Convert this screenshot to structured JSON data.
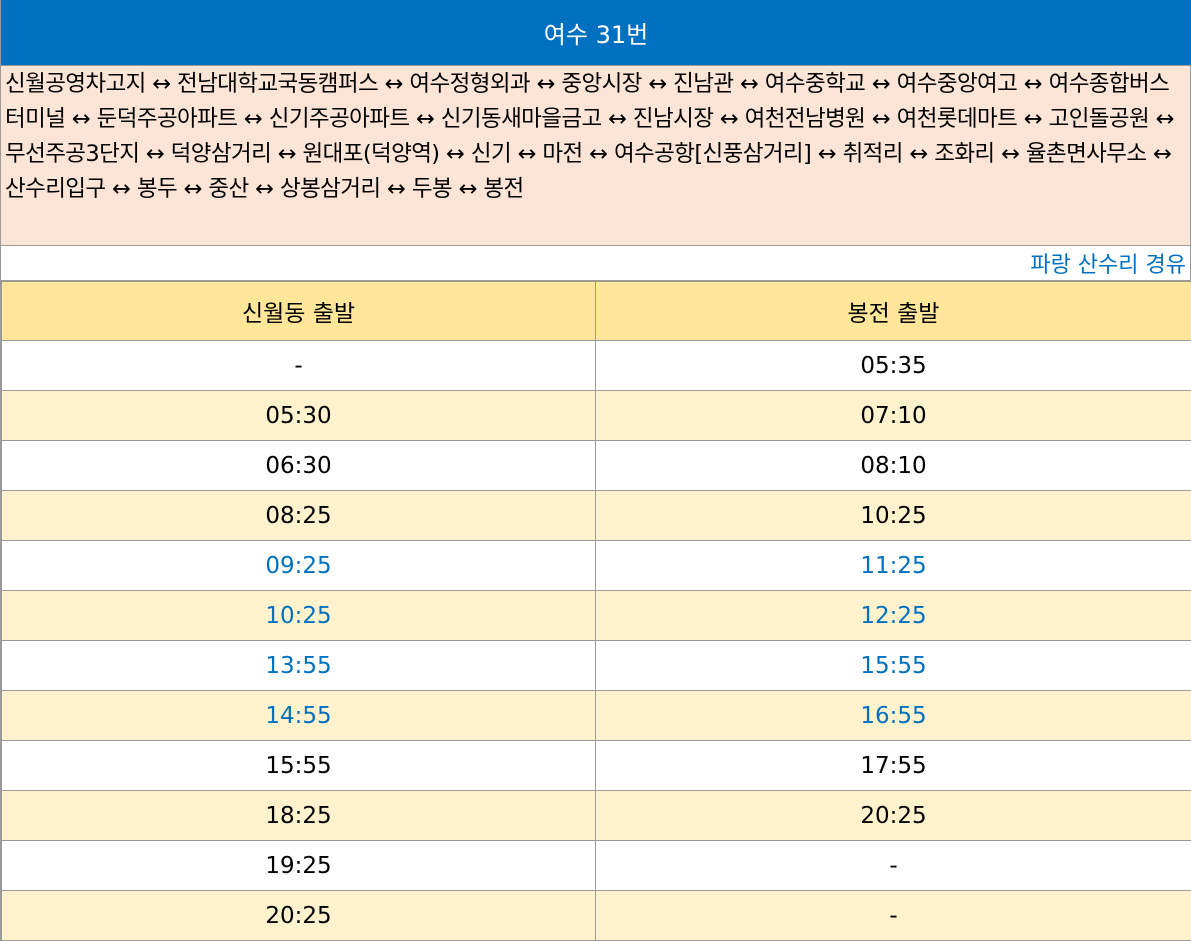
{
  "title": "여수 31번",
  "route_text": "신월공영차고지 ↔ 전남대학교국동캠퍼스 ↔ 여수정형외과 ↔ 중앙시장 ↔ 진남관 ↔ 여수중학교 ↔ 여수중앙여고 ↔ 여수종합버스터미널 ↔ 둔덕주공아파트 ↔ 신기주공아파트 ↔ 신기동새마을금고 ↔ 진남시장 ↔ 여천전남병원 ↔ 여천롯데마트 ↔ 고인돌공원 ↔ 무선주공3단지 ↔ 덕양삼거리 ↔ 원대포(덕양역) ↔ 신기 ↔ 마전 ↔ 여수공항[신풍삼거리] ↔ 취적리 ↔ 조화리 ↔ 율촌면사무소 ↔ 산수리입구 ↔ 봉두 ↔ 중산 ↔ 상봉삼거리 ↔ 두봉 ↔ 봉전",
  "note": "파랑 산수리 경유",
  "colors": {
    "title_bg": "#0070c0",
    "route_bg": "#fce4d6",
    "header_bg": "#ffe699",
    "row_alt_bg": "#fff2cc",
    "via_sansuri_text": "#0070c0"
  },
  "schedule": {
    "headers": [
      "신월동 출발",
      "봉전 출발"
    ],
    "rows": [
      {
        "c1": "-",
        "c2": "05:35",
        "color": "black"
      },
      {
        "c1": "05:30",
        "c2": "07:10",
        "color": "black"
      },
      {
        "c1": "06:30",
        "c2": "08:10",
        "color": "black"
      },
      {
        "c1": "08:25",
        "c2": "10:25",
        "color": "black"
      },
      {
        "c1": "09:25",
        "c2": "11:25",
        "color": "blue"
      },
      {
        "c1": "10:25",
        "c2": "12:25",
        "color": "blue"
      },
      {
        "c1": "13:55",
        "c2": "15:55",
        "color": "blue"
      },
      {
        "c1": "14:55",
        "c2": "16:55",
        "color": "blue"
      },
      {
        "c1": "15:55",
        "c2": "17:55",
        "color": "black"
      },
      {
        "c1": "18:25",
        "c2": "20:25",
        "color": "black"
      },
      {
        "c1": "19:25",
        "c2": "-",
        "color": "black"
      },
      {
        "c1": "20:25",
        "c2": "-",
        "color": "black"
      }
    ]
  }
}
